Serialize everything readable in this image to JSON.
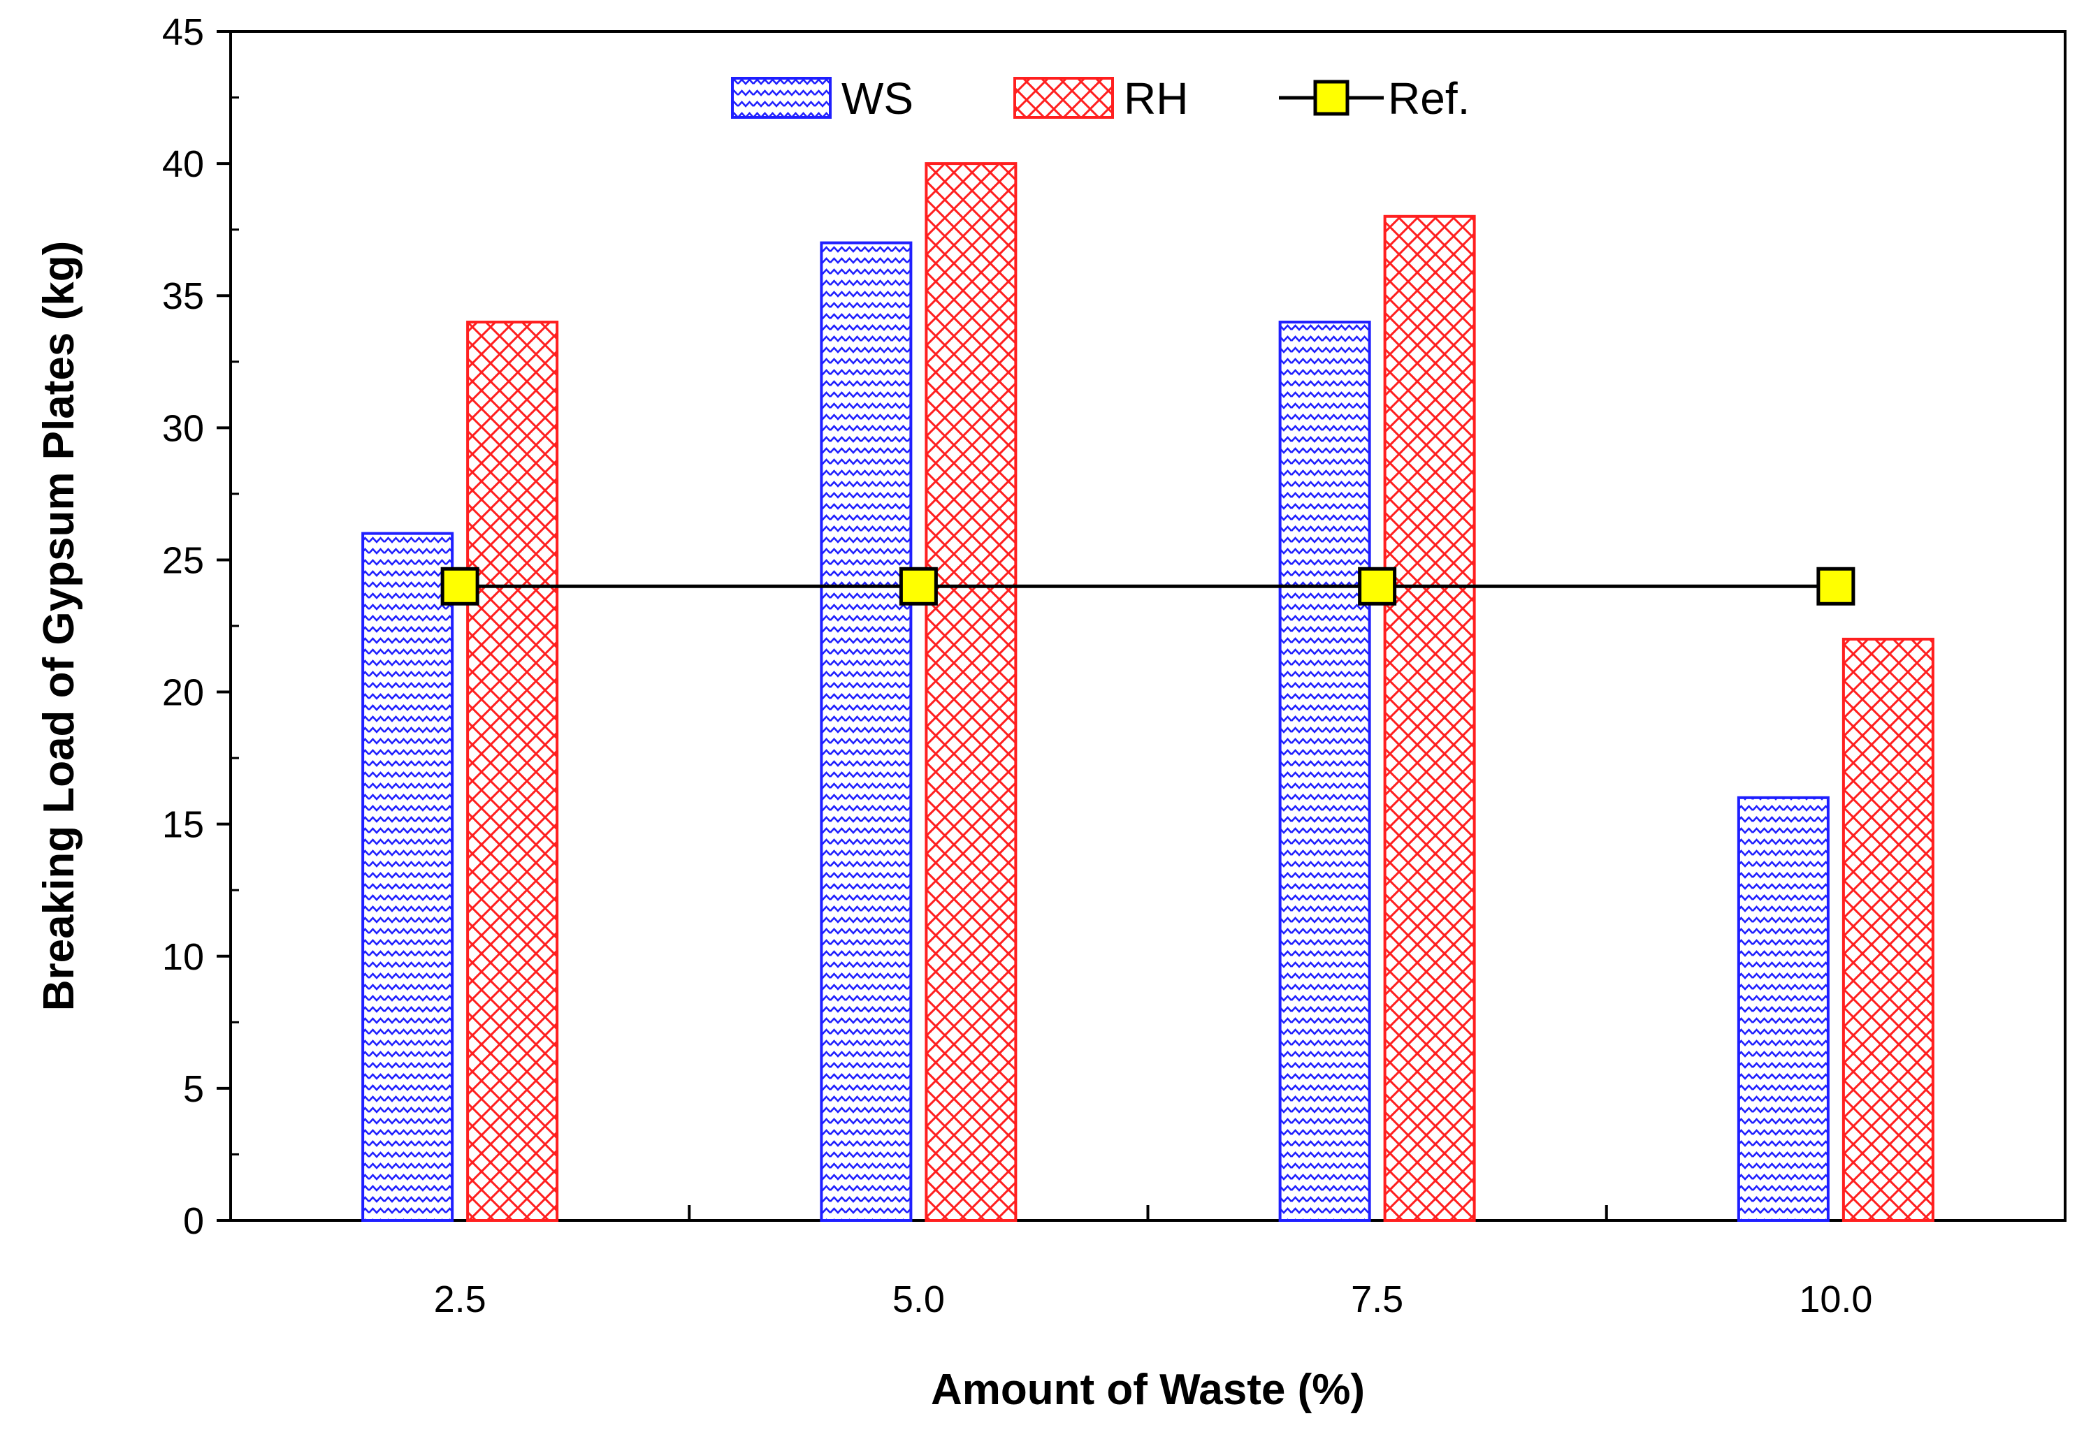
{
  "chart_data": {
    "type": "bar",
    "title": "",
    "xlabel": "Amount of Waste (%)",
    "ylabel": "Breaking Load of Gypsum Plates (kg)",
    "categories": [
      "2.5",
      "5.0",
      "7.5",
      "10.0"
    ],
    "ylim": [
      0,
      45
    ],
    "yticks": [
      "0",
      "5",
      "10",
      "15",
      "20",
      "25",
      "30",
      "35",
      "40",
      "45"
    ],
    "legend_position": "top-center",
    "series": [
      {
        "name": "WS",
        "kind": "bar",
        "values": [
          26,
          37,
          34,
          16
        ],
        "color": "#1f1fff",
        "pattern": "zigzag"
      },
      {
        "name": "RH",
        "kind": "bar",
        "values": [
          34,
          40,
          38,
          22
        ],
        "color": "#ff1f1f",
        "pattern": "crosshatch"
      },
      {
        "name": "Ref.",
        "kind": "line",
        "values": [
          24,
          24,
          24,
          24
        ],
        "color": "#000000",
        "marker_fill": "#ffff00"
      }
    ]
  }
}
